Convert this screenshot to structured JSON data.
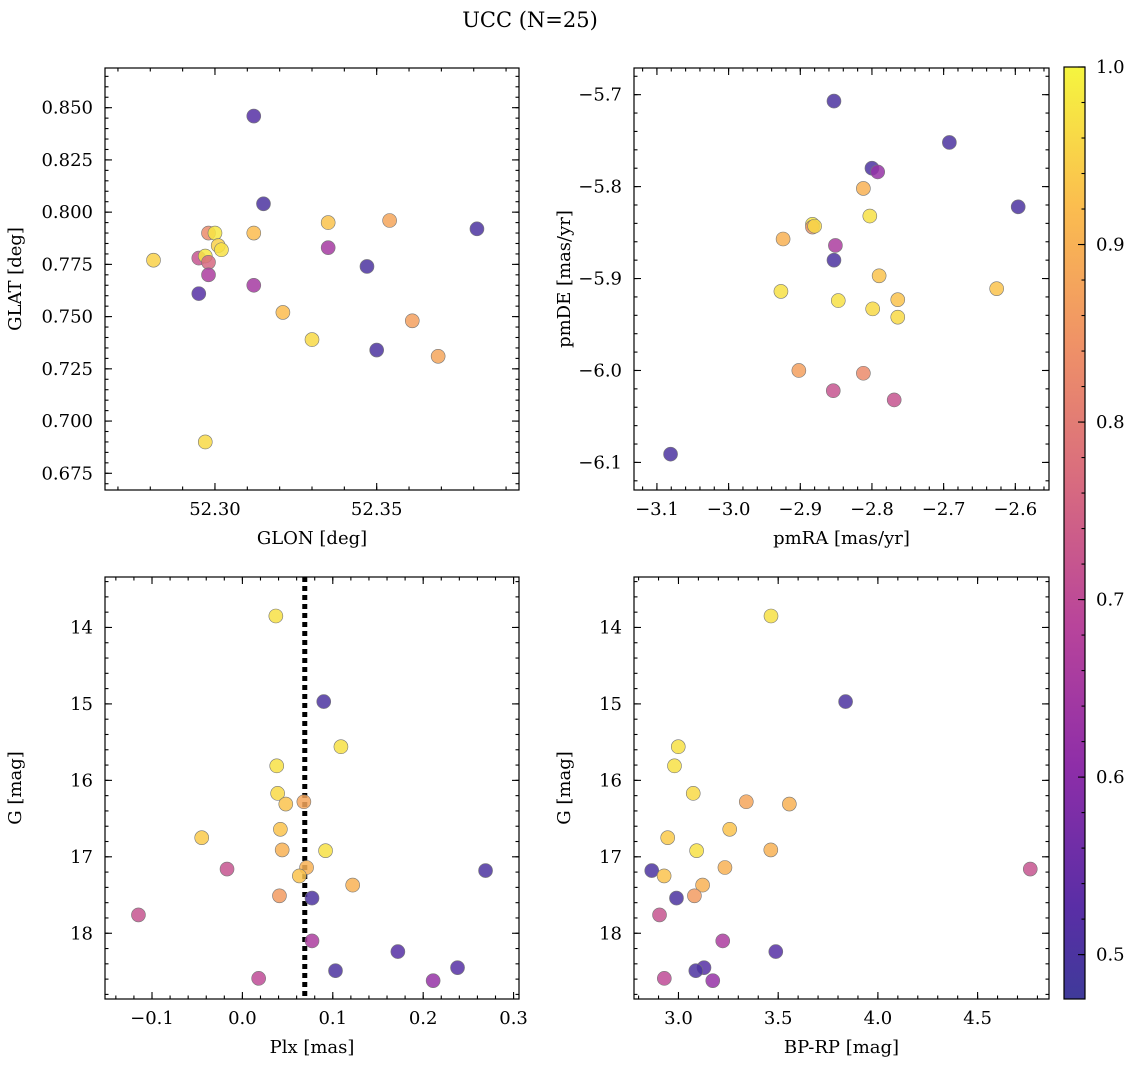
{
  "figure": {
    "title": "UCC (N=25)"
  },
  "colorbar": {
    "min": 0.475,
    "max": 1.0,
    "ticks": [
      "0.5",
      "0.6",
      "0.7",
      "0.8",
      "0.9",
      "1.0"
    ],
    "colormap": "plasma"
  },
  "chart_data": [
    {
      "type": "scatter",
      "xlabel": "GLON [deg]",
      "ylabel": "GLAT [deg]",
      "xlim": [
        52.266,
        52.394
      ],
      "ylim": [
        0.667,
        0.869
      ],
      "xticks": [
        "52.30",
        "52.35"
      ],
      "yticks": [
        "0.675",
        "0.700",
        "0.725",
        "0.750",
        "0.775",
        "0.800",
        "0.825",
        "0.850"
      ],
      "points": [
        {
          "x": 52.281,
          "y": 0.777,
          "c": 0.95
        },
        {
          "x": 52.295,
          "y": 0.778,
          "c": 0.72
        },
        {
          "x": 52.295,
          "y": 0.761,
          "c": 0.52
        },
        {
          "x": 52.297,
          "y": 0.779,
          "c": 0.98
        },
        {
          "x": 52.298,
          "y": 0.79,
          "c": 0.83
        },
        {
          "x": 52.298,
          "y": 0.776,
          "c": 0.76
        },
        {
          "x": 52.298,
          "y": 0.77,
          "c": 0.66
        },
        {
          "x": 52.3,
          "y": 0.79,
          "c": 0.98
        },
        {
          "x": 52.301,
          "y": 0.784,
          "c": 0.95
        },
        {
          "x": 52.302,
          "y": 0.782,
          "c": 0.97
        },
        {
          "x": 52.297,
          "y": 0.69,
          "c": 0.96
        },
        {
          "x": 52.312,
          "y": 0.846,
          "c": 0.52
        },
        {
          "x": 52.315,
          "y": 0.804,
          "c": 0.5
        },
        {
          "x": 52.312,
          "y": 0.79,
          "c": 0.92
        },
        {
          "x": 52.312,
          "y": 0.765,
          "c": 0.65
        },
        {
          "x": 52.321,
          "y": 0.752,
          "c": 0.92
        },
        {
          "x": 52.33,
          "y": 0.739,
          "c": 0.96
        },
        {
          "x": 52.335,
          "y": 0.795,
          "c": 0.93
        },
        {
          "x": 52.335,
          "y": 0.783,
          "c": 0.65
        },
        {
          "x": 52.347,
          "y": 0.774,
          "c": 0.5
        },
        {
          "x": 52.35,
          "y": 0.734,
          "c": 0.5
        },
        {
          "x": 52.354,
          "y": 0.796,
          "c": 0.88
        },
        {
          "x": 52.361,
          "y": 0.748,
          "c": 0.87
        },
        {
          "x": 52.369,
          "y": 0.731,
          "c": 0.88
        },
        {
          "x": 52.381,
          "y": 0.792,
          "c": 0.5
        }
      ]
    },
    {
      "type": "scatter",
      "xlabel": "pmRA [mas/yr]",
      "ylabel": "pmDE [mas/yr]",
      "xlim": [
        -3.132,
        -2.553
      ],
      "ylim": [
        -6.13,
        -5.671
      ],
      "xticks": [
        "−3.1",
        "−3.0",
        "−2.9",
        "−2.8",
        "−2.7",
        "−2.6"
      ],
      "yticks": [
        "−6.1",
        "−6.0",
        "−5.9",
        "−5.8",
        "−5.7"
      ],
      "points": [
        {
          "x": -3.081,
          "y": -6.091,
          "c": 0.5
        },
        {
          "x": -2.853,
          "y": -5.707,
          "c": 0.5
        },
        {
          "x": -2.692,
          "y": -5.752,
          "c": 0.5
        },
        {
          "x": -2.8,
          "y": -5.78,
          "c": 0.5
        },
        {
          "x": -2.792,
          "y": -5.784,
          "c": 0.62
        },
        {
          "x": -2.596,
          "y": -5.822,
          "c": 0.5
        },
        {
          "x": -2.812,
          "y": -5.802,
          "c": 0.9
        },
        {
          "x": -2.803,
          "y": -5.832,
          "c": 0.97
        },
        {
          "x": -2.883,
          "y": -5.841,
          "c": 0.98
        },
        {
          "x": -2.883,
          "y": -5.844,
          "c": 0.85
        },
        {
          "x": -2.924,
          "y": -5.857,
          "c": 0.9
        },
        {
          "x": -2.851,
          "y": -5.864,
          "c": 0.66
        },
        {
          "x": -2.853,
          "y": -5.88,
          "c": 0.5
        },
        {
          "x": -2.79,
          "y": -5.897,
          "c": 0.93
        },
        {
          "x": -2.927,
          "y": -5.914,
          "c": 0.97
        },
        {
          "x": -2.847,
          "y": -5.924,
          "c": 0.97
        },
        {
          "x": -2.764,
          "y": -5.923,
          "c": 0.93
        },
        {
          "x": -2.799,
          "y": -5.933,
          "c": 0.96
        },
        {
          "x": -2.764,
          "y": -5.942,
          "c": 0.96
        },
        {
          "x": -2.626,
          "y": -5.911,
          "c": 0.93
        },
        {
          "x": -2.902,
          "y": -6.0,
          "c": 0.87
        },
        {
          "x": -2.812,
          "y": -6.003,
          "c": 0.83
        },
        {
          "x": -2.854,
          "y": -6.022,
          "c": 0.72
        },
        {
          "x": -2.769,
          "y": -6.032,
          "c": 0.72
        },
        {
          "x": -2.88,
          "y": -5.843,
          "c": 0.96
        }
      ]
    },
    {
      "type": "scatter",
      "xlabel": "Plx [mas]",
      "ylabel": "G [mag]",
      "xlim": [
        -0.152,
        0.306
      ],
      "ylim": [
        18.86,
        13.34
      ],
      "y_inverted": true,
      "xticks": [
        "−0.1",
        "0.0",
        "0.1",
        "0.2",
        "0.3"
      ],
      "yticks": [
        "14",
        "15",
        "16",
        "17",
        "18"
      ],
      "vline": {
        "x": 0.069,
        "style": "dotted",
        "color": "#000000"
      },
      "points": [
        {
          "x": 0.037,
          "y": 13.85,
          "c": 0.97
        },
        {
          "x": 0.09,
          "y": 14.97,
          "c": 0.5
        },
        {
          "x": 0.109,
          "y": 15.56,
          "c": 0.97
        },
        {
          "x": 0.038,
          "y": 15.81,
          "c": 0.97
        },
        {
          "x": 0.039,
          "y": 16.17,
          "c": 0.96
        },
        {
          "x": 0.048,
          "y": 16.31,
          "c": 0.93
        },
        {
          "x": 0.068,
          "y": 16.28,
          "c": 0.88
        },
        {
          "x": 0.042,
          "y": 16.64,
          "c": 0.93
        },
        {
          "x": -0.045,
          "y": 16.75,
          "c": 0.94
        },
        {
          "x": 0.044,
          "y": 16.91,
          "c": 0.9
        },
        {
          "x": 0.092,
          "y": 16.92,
          "c": 0.97
        },
        {
          "x": 0.071,
          "y": 17.14,
          "c": 0.9
        },
        {
          "x": -0.017,
          "y": 17.16,
          "c": 0.72
        },
        {
          "x": 0.269,
          "y": 17.18,
          "c": 0.5
        },
        {
          "x": 0.063,
          "y": 17.25,
          "c": 0.93
        },
        {
          "x": 0.122,
          "y": 17.37,
          "c": 0.9
        },
        {
          "x": 0.041,
          "y": 17.51,
          "c": 0.86
        },
        {
          "x": 0.077,
          "y": 17.54,
          "c": 0.5
        },
        {
          "x": -0.115,
          "y": 17.76,
          "c": 0.72
        },
        {
          "x": 0.077,
          "y": 18.1,
          "c": 0.66
        },
        {
          "x": 0.172,
          "y": 18.24,
          "c": 0.52
        },
        {
          "x": 0.238,
          "y": 18.45,
          "c": 0.52
        },
        {
          "x": 0.103,
          "y": 18.49,
          "c": 0.5
        },
        {
          "x": 0.018,
          "y": 18.59,
          "c": 0.7
        },
        {
          "x": 0.211,
          "y": 18.62,
          "c": 0.62
        }
      ]
    },
    {
      "type": "scatter",
      "xlabel": "BP-RP [mag]",
      "ylabel": "G [mag]",
      "xlim": [
        2.777,
        4.858
      ],
      "ylim": [
        18.86,
        13.34
      ],
      "y_inverted": true,
      "xticks": [
        "3.0",
        "3.5",
        "4.0",
        "4.5"
      ],
      "yticks": [
        "14",
        "15",
        "16",
        "17",
        "18"
      ],
      "points": [
        {
          "x": 3.464,
          "y": 13.85,
          "c": 0.97
        },
        {
          "x": 3.838,
          "y": 14.97,
          "c": 0.5
        },
        {
          "x": 2.999,
          "y": 15.56,
          "c": 0.97
        },
        {
          "x": 2.98,
          "y": 15.81,
          "c": 0.97
        },
        {
          "x": 3.074,
          "y": 16.17,
          "c": 0.96
        },
        {
          "x": 3.34,
          "y": 16.28,
          "c": 0.88
        },
        {
          "x": 3.556,
          "y": 16.31,
          "c": 0.9
        },
        {
          "x": 3.257,
          "y": 16.64,
          "c": 0.93
        },
        {
          "x": 2.946,
          "y": 16.75,
          "c": 0.94
        },
        {
          "x": 3.091,
          "y": 16.92,
          "c": 0.97
        },
        {
          "x": 3.463,
          "y": 16.91,
          "c": 0.9
        },
        {
          "x": 3.233,
          "y": 17.14,
          "c": 0.9
        },
        {
          "x": 2.866,
          "y": 17.18,
          "c": 0.5
        },
        {
          "x": 4.764,
          "y": 17.16,
          "c": 0.72
        },
        {
          "x": 2.928,
          "y": 17.25,
          "c": 0.93
        },
        {
          "x": 3.121,
          "y": 17.37,
          "c": 0.9
        },
        {
          "x": 3.08,
          "y": 17.51,
          "c": 0.86
        },
        {
          "x": 2.99,
          "y": 17.54,
          "c": 0.5
        },
        {
          "x": 2.905,
          "y": 17.76,
          "c": 0.72
        },
        {
          "x": 3.222,
          "y": 18.1,
          "c": 0.66
        },
        {
          "x": 3.488,
          "y": 18.24,
          "c": 0.52
        },
        {
          "x": 3.128,
          "y": 18.45,
          "c": 0.52
        },
        {
          "x": 3.087,
          "y": 18.49,
          "c": 0.5
        },
        {
          "x": 2.929,
          "y": 18.59,
          "c": 0.7
        },
        {
          "x": 3.172,
          "y": 18.62,
          "c": 0.62
        }
      ]
    }
  ]
}
